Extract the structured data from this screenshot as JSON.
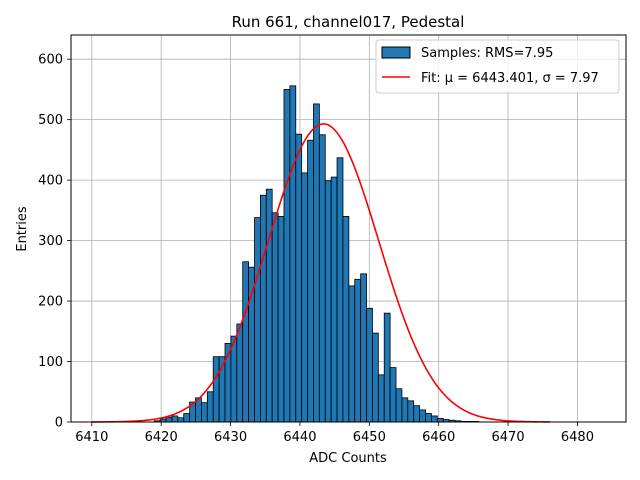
{
  "chart_data": {
    "type": "bar",
    "title": "Run 661, channel017, Pedestal",
    "xlabel": "ADC Counts",
    "ylabel": "Entries",
    "xlim": [
      6407,
      6487
    ],
    "ylim": [
      0,
      640
    ],
    "xticks": [
      6410,
      6420,
      6430,
      6440,
      6450,
      6460,
      6470,
      6480
    ],
    "yticks": [
      0,
      100,
      200,
      300,
      400,
      500,
      600
    ],
    "grid": true,
    "legend_position": "top-right",
    "colors": {
      "bars": "#1f77b4",
      "bar_edge": "#000000",
      "fit": "#ff0000",
      "grid": "#b0b0b0"
    },
    "histogram": {
      "name": "Samples: RMS=7.95",
      "bin_width": 0.85,
      "bin_starts": [
        6419.0,
        6419.85,
        6420.7,
        6421.55,
        6422.4,
        6423.25,
        6424.1,
        6424.95,
        6425.8,
        6426.65,
        6427.5,
        6428.35,
        6429.2,
        6430.05,
        6430.9,
        6431.75,
        6432.6,
        6433.45,
        6434.3,
        6435.15,
        6436.0,
        6436.85,
        6437.7,
        6438.55,
        6439.4,
        6440.25,
        6441.1,
        6441.95,
        6442.8,
        6443.65,
        6444.5,
        6445.35,
        6446.2,
        6447.05,
        6447.9,
        6448.75,
        6449.6,
        6450.45,
        6451.3,
        6452.15,
        6453.0,
        6453.85,
        6454.7,
        6455.55,
        6456.4,
        6457.25,
        6458.1,
        6458.95,
        6459.8,
        6460.65,
        6461.5,
        6462.35,
        6463.2,
        6464.05,
        6464.9,
        6465.75,
        6466.6,
        6467.45,
        6468.3,
        6469.15
      ],
      "counts": [
        2,
        5,
        8,
        10,
        7,
        14,
        33,
        40,
        32,
        50,
        108,
        108,
        130,
        142,
        162,
        265,
        256,
        338,
        375,
        385,
        346,
        340,
        550,
        556,
        476,
        412,
        466,
        526,
        475,
        399,
        405,
        437,
        340,
        225,
        236,
        245,
        188,
        147,
        78,
        180,
        90,
        55,
        40,
        35,
        27,
        20,
        14,
        10,
        6,
        4,
        3,
        2,
        1,
        1,
        1,
        0,
        0,
        0,
        0,
        0
      ]
    },
    "fit": {
      "name": "Fit: μ = 6443.401, σ = 7.97",
      "mu": 6443.401,
      "sigma": 7.97,
      "amplitude": 493,
      "x_range": [
        6410,
        6476
      ]
    }
  }
}
